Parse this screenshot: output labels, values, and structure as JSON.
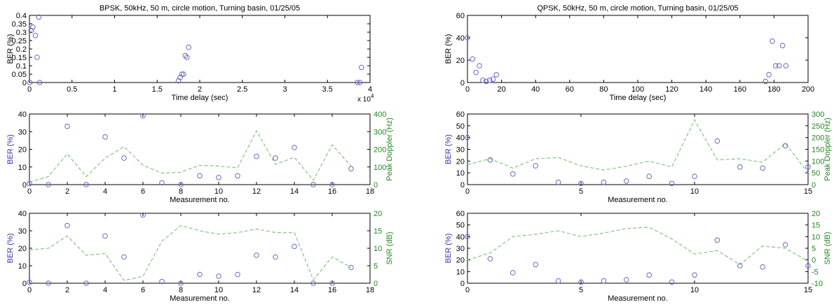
{
  "figure": {
    "colors": {
      "axis": "#000000",
      "marker": "#6666cc",
      "line": "#7fc77f",
      "ylabel_left": "#3333aa",
      "ylabel_right": "#228822"
    }
  },
  "chart_data": [
    {
      "id": "bpsk-time",
      "type": "scatter",
      "title": "BPSK, 50kHz, 50 m, circle motion, Turning basin, 01/25/05",
      "xlabel": "Time delay (sec)",
      "ylabel": "BER (%)",
      "xlim": [
        0,
        40000
      ],
      "ylim": [
        0,
        0.4
      ],
      "xticks": [
        0,
        5000,
        10000,
        15000,
        20000,
        25000,
        30000,
        35000,
        40000
      ],
      "xticklabels": [
        "0",
        "0.5",
        "1",
        "1.5",
        "2",
        "2.5",
        "3",
        "3.5",
        "4"
      ],
      "yticks": [
        0,
        0.05,
        0.1,
        0.15,
        0.2,
        0.25,
        0.3,
        0.35,
        0.4
      ],
      "yticklabels": [
        "0",
        "0.05",
        "0.1",
        "0.15",
        "0.2",
        "0.25",
        "0.3",
        "0.35",
        "0.4"
      ],
      "multiplier": "x 10",
      "multiplier_exp": "4",
      "points": [
        [
          50,
          0
        ],
        [
          200,
          0.31
        ],
        [
          400,
          0.33
        ],
        [
          700,
          0.28
        ],
        [
          900,
          0.15
        ],
        [
          1100,
          0.39
        ],
        [
          1200,
          0
        ],
        [
          17500,
          0.01
        ],
        [
          17700,
          0.03
        ],
        [
          17900,
          0.05
        ],
        [
          18100,
          0.05
        ],
        [
          18300,
          0.16
        ],
        [
          18500,
          0.15
        ],
        [
          18700,
          0.21
        ],
        [
          38500,
          0
        ],
        [
          38800,
          0
        ],
        [
          39000,
          0.09
        ]
      ]
    },
    {
      "id": "qpsk-time",
      "type": "scatter",
      "title": "QPSK, 50kHz, 50 m, circle motion, Turning basin, 01/25/05",
      "xlabel": "Time delay (sec)",
      "ylabel": "BER (%)",
      "xlim": [
        0,
        200
      ],
      "ylim": [
        0,
        60
      ],
      "xticks": [
        0,
        20,
        40,
        60,
        80,
        100,
        120,
        140,
        160,
        180,
        200
      ],
      "xticklabels": [
        "0",
        "20",
        "40",
        "60",
        "80",
        "100",
        "120",
        "140",
        "160",
        "180",
        "200"
      ],
      "yticks": [
        0,
        20,
        40,
        60
      ],
      "yticklabels": [
        "0",
        "20",
        "40",
        "60"
      ],
      "points": [
        [
          0,
          40
        ],
        [
          3,
          21
        ],
        [
          5,
          9
        ],
        [
          7,
          15
        ],
        [
          9,
          2
        ],
        [
          11,
          1
        ],
        [
          13,
          2
        ],
        [
          15,
          3
        ],
        [
          17,
          7
        ],
        [
          175,
          1
        ],
        [
          177,
          7
        ],
        [
          179,
          37
        ],
        [
          181,
          15
        ],
        [
          183,
          15
        ],
        [
          185,
          33
        ],
        [
          187,
          15
        ]
      ]
    },
    {
      "id": "bpsk-doppler",
      "type": "scatter+line",
      "xlabel": "Measurement no.",
      "ylabel": "BER (%)",
      "ylabel_right": "Peak Doppler (Hz)",
      "xlim": [
        0,
        18
      ],
      "ylim": [
        0,
        40
      ],
      "ylim_right": [
        0,
        400
      ],
      "xticks": [
        0,
        2,
        4,
        6,
        8,
        10,
        12,
        14,
        16,
        18
      ],
      "xticklabels": [
        "0",
        "2",
        "4",
        "6",
        "8",
        "10",
        "12",
        "14",
        "16",
        "18"
      ],
      "yticks": [
        0,
        10,
        20,
        30,
        40
      ],
      "yticklabels": [
        "0",
        "10",
        "20",
        "30",
        "40"
      ],
      "yticks_right": [
        0,
        100,
        200,
        300,
        400
      ],
      "yticklabels_right": [
        "0",
        "100",
        "200",
        "300",
        "400"
      ],
      "ber": [
        [
          0,
          0.5
        ],
        [
          1,
          0
        ],
        [
          2,
          33
        ],
        [
          3,
          0
        ],
        [
          4,
          27
        ],
        [
          5,
          15
        ],
        [
          6,
          39
        ],
        [
          7,
          1
        ],
        [
          8,
          0
        ],
        [
          9,
          5
        ],
        [
          10,
          4
        ],
        [
          11,
          5
        ],
        [
          12,
          16
        ],
        [
          13,
          15
        ],
        [
          14,
          21
        ],
        [
          15,
          0
        ],
        [
          16,
          0
        ],
        [
          17,
          9
        ]
      ],
      "line": [
        [
          0,
          15
        ],
        [
          1,
          45
        ],
        [
          2,
          175
        ],
        [
          3,
          45
        ],
        [
          4,
          150
        ],
        [
          5,
          215
        ],
        [
          6,
          110
        ],
        [
          7,
          65
        ],
        [
          8,
          70
        ],
        [
          9,
          110
        ],
        [
          10,
          105
        ],
        [
          11,
          95
        ],
        [
          12,
          305
        ],
        [
          13,
          115
        ],
        [
          14,
          155
        ],
        [
          15,
          25
        ],
        [
          16,
          225
        ],
        [
          17,
          105
        ]
      ]
    },
    {
      "id": "qpsk-doppler",
      "type": "scatter+line",
      "xlabel": "Measurement no.",
      "ylabel": "BER (%)",
      "ylabel_right": "Peak Doppler (Hz)",
      "xlim": [
        0,
        15
      ],
      "ylim": [
        0,
        60
      ],
      "ylim_right": [
        0,
        300
      ],
      "xticks": [
        0,
        5,
        10,
        15
      ],
      "xticklabels": [
        "0",
        "5",
        "10",
        "15"
      ],
      "yticks": [
        0,
        10,
        20,
        30,
        40,
        50,
        60
      ],
      "yticklabels": [
        "0",
        "10",
        "20",
        "30",
        "40",
        "50",
        "60"
      ],
      "yticks_right": [
        0,
        50,
        100,
        150,
        200,
        250,
        300
      ],
      "yticklabels_right": [
        "0",
        "50",
        "100",
        "150",
        "200",
        "250",
        "300"
      ],
      "ber": [
        [
          0,
          40
        ],
        [
          1,
          21
        ],
        [
          2,
          9
        ],
        [
          3,
          16
        ],
        [
          4,
          2
        ],
        [
          5,
          1
        ],
        [
          6,
          2
        ],
        [
          7,
          3
        ],
        [
          8,
          7
        ],
        [
          9,
          1
        ],
        [
          10,
          7
        ],
        [
          11,
          37
        ],
        [
          12,
          15
        ],
        [
          13,
          14
        ],
        [
          14,
          33
        ],
        [
          15,
          15
        ]
      ],
      "line": [
        [
          0,
          85
        ],
        [
          1,
          110
        ],
        [
          2,
          70
        ],
        [
          3,
          110
        ],
        [
          4,
          115
        ],
        [
          5,
          80
        ],
        [
          6,
          62
        ],
        [
          7,
          78
        ],
        [
          8,
          100
        ],
        [
          9,
          75
        ],
        [
          10,
          275
        ],
        [
          11,
          105
        ],
        [
          12,
          110
        ],
        [
          13,
          95
        ],
        [
          14,
          175
        ],
        [
          15,
          50
        ]
      ]
    },
    {
      "id": "bpsk-snr",
      "type": "scatter+line",
      "xlabel": "Measurement no.",
      "ylabel": "BER (%)",
      "ylabel_right": "SNR (dB)",
      "xlim": [
        0,
        18
      ],
      "ylim": [
        0,
        40
      ],
      "ylim_right": [
        0,
        20
      ],
      "xticks": [
        0,
        2,
        4,
        6,
        8,
        10,
        12,
        14,
        16,
        18
      ],
      "xticklabels": [
        "0",
        "2",
        "4",
        "6",
        "8",
        "10",
        "12",
        "14",
        "16",
        "18"
      ],
      "yticks": [
        0,
        10,
        20,
        30,
        40
      ],
      "yticklabels": [
        "0",
        "10",
        "20",
        "30",
        "40"
      ],
      "yticks_right": [
        0,
        5,
        10,
        15,
        20
      ],
      "yticklabels_right": [
        "0",
        "5",
        "10",
        "15",
        "20"
      ],
      "ber": [
        [
          0,
          0.5
        ],
        [
          1,
          0
        ],
        [
          2,
          33
        ],
        [
          3,
          0
        ],
        [
          4,
          27
        ],
        [
          5,
          15
        ],
        [
          6,
          39
        ],
        [
          7,
          1
        ],
        [
          8,
          0
        ],
        [
          9,
          5
        ],
        [
          10,
          4
        ],
        [
          11,
          5
        ],
        [
          12,
          16
        ],
        [
          13,
          15
        ],
        [
          14,
          21
        ],
        [
          15,
          0
        ],
        [
          16,
          0
        ],
        [
          17,
          9
        ]
      ],
      "line": [
        [
          0,
          9.5
        ],
        [
          1,
          10
        ],
        [
          2,
          13.5
        ],
        [
          3,
          8
        ],
        [
          4,
          8.5
        ],
        [
          5,
          0.8
        ],
        [
          6,
          2
        ],
        [
          7,
          12
        ],
        [
          8,
          16.5
        ],
        [
          9,
          15
        ],
        [
          10,
          14
        ],
        [
          11,
          14.5
        ],
        [
          12,
          15.5
        ],
        [
          13,
          14.5
        ],
        [
          14,
          14.5
        ],
        [
          15,
          1
        ],
        [
          16,
          7.5
        ],
        [
          17,
          4.5
        ]
      ]
    },
    {
      "id": "qpsk-snr",
      "type": "scatter+line",
      "xlabel": "Measurement no.",
      "ylabel": "BER (%)",
      "ylabel_right": "SNR (dB)",
      "xlim": [
        0,
        15
      ],
      "ylim": [
        0,
        60
      ],
      "ylim_right": [
        -10,
        20
      ],
      "xticks": [
        0,
        5,
        10,
        15
      ],
      "xticklabels": [
        "0",
        "5",
        "10",
        "15"
      ],
      "yticks": [
        0,
        10,
        20,
        30,
        40,
        50,
        60
      ],
      "yticklabels": [
        "0",
        "10",
        "20",
        "30",
        "40",
        "50",
        "60"
      ],
      "yticks_right": [
        -10,
        -5,
        0,
        5,
        10,
        15,
        20
      ],
      "yticklabels_right": [
        "-10",
        "-5",
        "0",
        "5",
        "10",
        "15",
        "20"
      ],
      "ber": [
        [
          0,
          40
        ],
        [
          1,
          21
        ],
        [
          2,
          9
        ],
        [
          3,
          16
        ],
        [
          4,
          2
        ],
        [
          5,
          1
        ],
        [
          6,
          2
        ],
        [
          7,
          3
        ],
        [
          8,
          7
        ],
        [
          9,
          1
        ],
        [
          10,
          7
        ],
        [
          11,
          37
        ],
        [
          12,
          15
        ],
        [
          13,
          14
        ],
        [
          14,
          33
        ],
        [
          15,
          15
        ]
      ],
      "line": [
        [
          0,
          0
        ],
        [
          1,
          3
        ],
        [
          2,
          10
        ],
        [
          3,
          11
        ],
        [
          4,
          12.5
        ],
        [
          5,
          10
        ],
        [
          6,
          11.5
        ],
        [
          7,
          13.5
        ],
        [
          8,
          14
        ],
        [
          9,
          9
        ],
        [
          10,
          2.5
        ],
        [
          11,
          4
        ],
        [
          12,
          -2
        ],
        [
          13,
          6
        ],
        [
          14,
          5
        ],
        [
          15,
          -0.5
        ]
      ]
    }
  ]
}
